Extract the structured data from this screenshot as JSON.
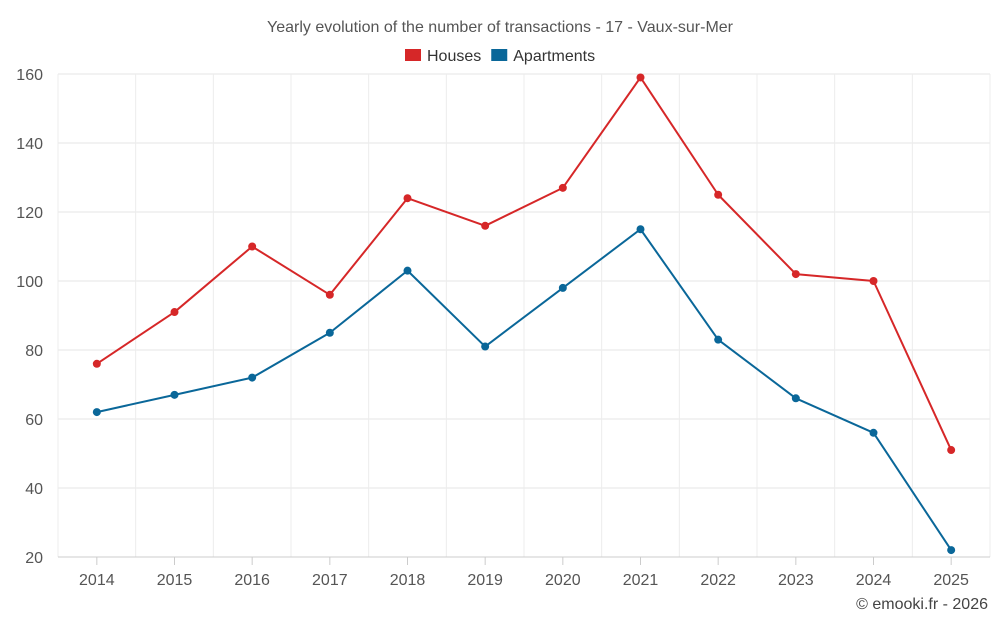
{
  "chart_data": {
    "type": "line",
    "title": "Yearly evolution of the number of transactions - 17 - Vaux-sur-Mer",
    "xlabel": "",
    "ylabel": "",
    "categories": [
      "2014",
      "2015",
      "2016",
      "2017",
      "2018",
      "2019",
      "2020",
      "2021",
      "2022",
      "2023",
      "2024",
      "2025"
    ],
    "ylim": [
      20,
      160
    ],
    "yticks": [
      20,
      40,
      60,
      80,
      100,
      120,
      140,
      160
    ],
    "grid": true,
    "legend_position": "top-center",
    "series": [
      {
        "name": "Houses",
        "color": "#d62728",
        "values": [
          76,
          91,
          110,
          96,
          124,
          116,
          127,
          159,
          125,
          102,
          100,
          51
        ]
      },
      {
        "name": "Apartments",
        "color": "#0a6799",
        "values": [
          62,
          67,
          72,
          85,
          103,
          81,
          98,
          115,
          83,
          66,
          56,
          22
        ]
      }
    ]
  },
  "credit": "© emooki.fr - 2026"
}
